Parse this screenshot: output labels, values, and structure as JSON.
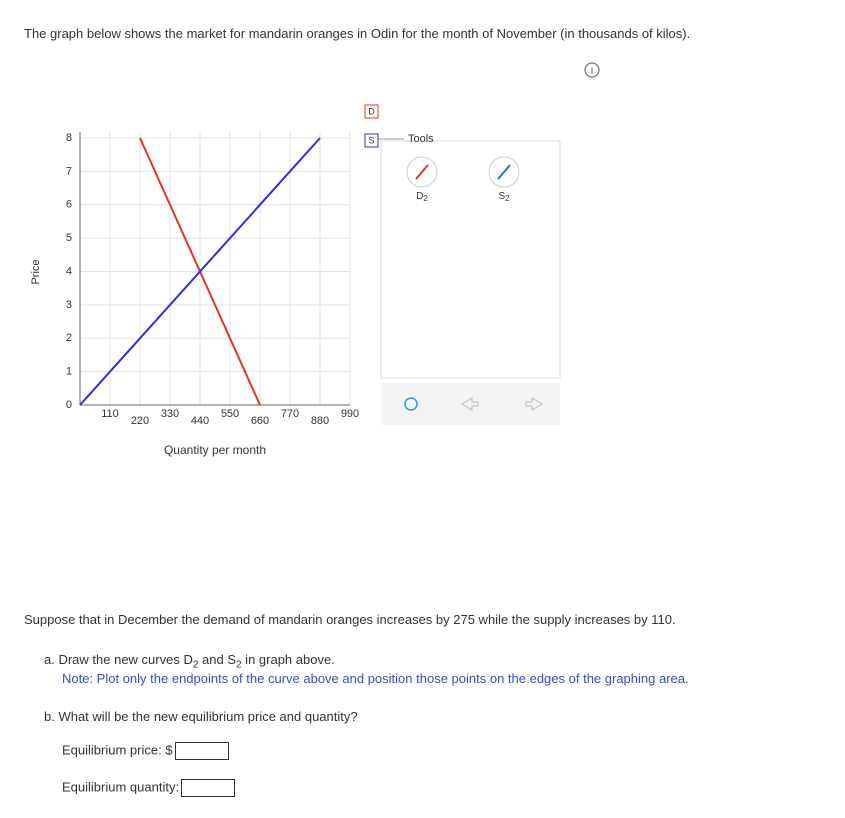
{
  "question": "The graph below shows the market for mandarin oranges in Odin for the month of November (in thousands of kilos).",
  "chart_data": {
    "type": "line",
    "x_label": "Quantity per month",
    "y_label": "Price",
    "xlim": [
      0,
      990
    ],
    "ylim": [
      0,
      8
    ],
    "xticks": [
      110,
      220,
      330,
      440,
      550,
      660,
      770,
      880,
      990
    ],
    "yticks": [
      0,
      1,
      2,
      3,
      4,
      5,
      6,
      7,
      8
    ],
    "grid": true,
    "series": [
      {
        "name": "D",
        "color": "#e8312a",
        "x": [
          220,
          660
        ],
        "values": [
          8,
          0
        ]
      },
      {
        "name": "S",
        "color": "#2b2bef",
        "x": [
          0,
          880
        ],
        "values": [
          0,
          8
        ]
      }
    ]
  },
  "tools": {
    "title": "Tools",
    "items": [
      {
        "label": "D",
        "sub": "2",
        "color": "#e8312a"
      },
      {
        "label": "S",
        "sub": "2",
        "color": "#2b6fd6"
      }
    ]
  },
  "prompt": "Suppose that in December the demand of mandarin oranges increases by 275 while the supply increases by 110.",
  "part_a": {
    "pieces": [
      "a. Draw the new curves ",
      "D",
      "2",
      " and ",
      "S",
      "2",
      " in graph above."
    ],
    "note": "Note: Plot only the endpoints of the curve above and position those points on the edges of the graphing area."
  },
  "part_b": {
    "question": "b. What will be the new equilibrium price and quantity?",
    "price_label": "Equilibrium price: $",
    "quantity_label": "Equilibrium quantity:"
  }
}
